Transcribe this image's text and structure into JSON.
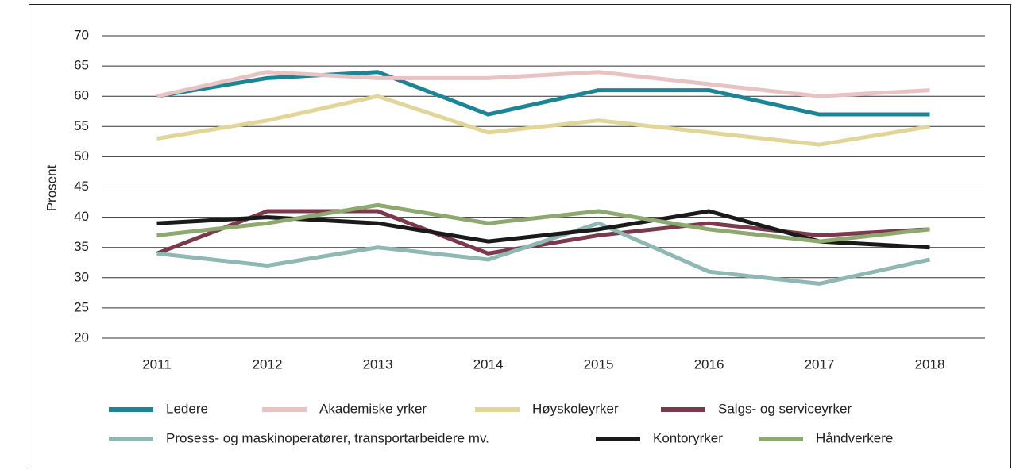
{
  "chart_data": {
    "type": "line",
    "y_label": "Prosent",
    "categories": [
      "2011",
      "2012",
      "2013",
      "2014",
      "2015",
      "2016",
      "2017",
      "2018"
    ],
    "series": [
      {
        "name": "Ledere",
        "color": "#1b8596",
        "values": [
          60,
          63,
          64,
          57,
          61,
          61,
          57,
          57
        ]
      },
      {
        "name": "Akademiske yrker",
        "color": "#e9c3c3",
        "values": [
          60,
          64,
          63,
          63,
          64,
          62,
          60,
          61
        ]
      },
      {
        "name": "Høyskoleyrker",
        "color": "#e1d597",
        "values": [
          53,
          56,
          60,
          54,
          56,
          54,
          52,
          55
        ]
      },
      {
        "name": "Salgs- og serviceyrker",
        "color": "#7b3a4b",
        "values": [
          34,
          41,
          41,
          34,
          37,
          39,
          37,
          38
        ]
      },
      {
        "name": "Prosess- og maskinoperatører, transportarbeidere mv.",
        "color": "#8fb7b3",
        "values": [
          34,
          32,
          35,
          33,
          39,
          31,
          29,
          33
        ]
      },
      {
        "name": "Kontoryrker",
        "color": "#1a1a1a",
        "values": [
          39,
          40,
          39,
          36,
          38,
          41,
          36,
          35
        ]
      },
      {
        "name": "Håndverkere",
        "color": "#8ea96f",
        "values": [
          37,
          39,
          42,
          39,
          41,
          38,
          36,
          38
        ]
      }
    ],
    "ylim": [
      20,
      70
    ],
    "yticks": [
      20,
      25,
      30,
      35,
      40,
      45,
      50,
      55,
      60,
      65,
      70
    ],
    "grid": true,
    "legend": "bottom"
  }
}
